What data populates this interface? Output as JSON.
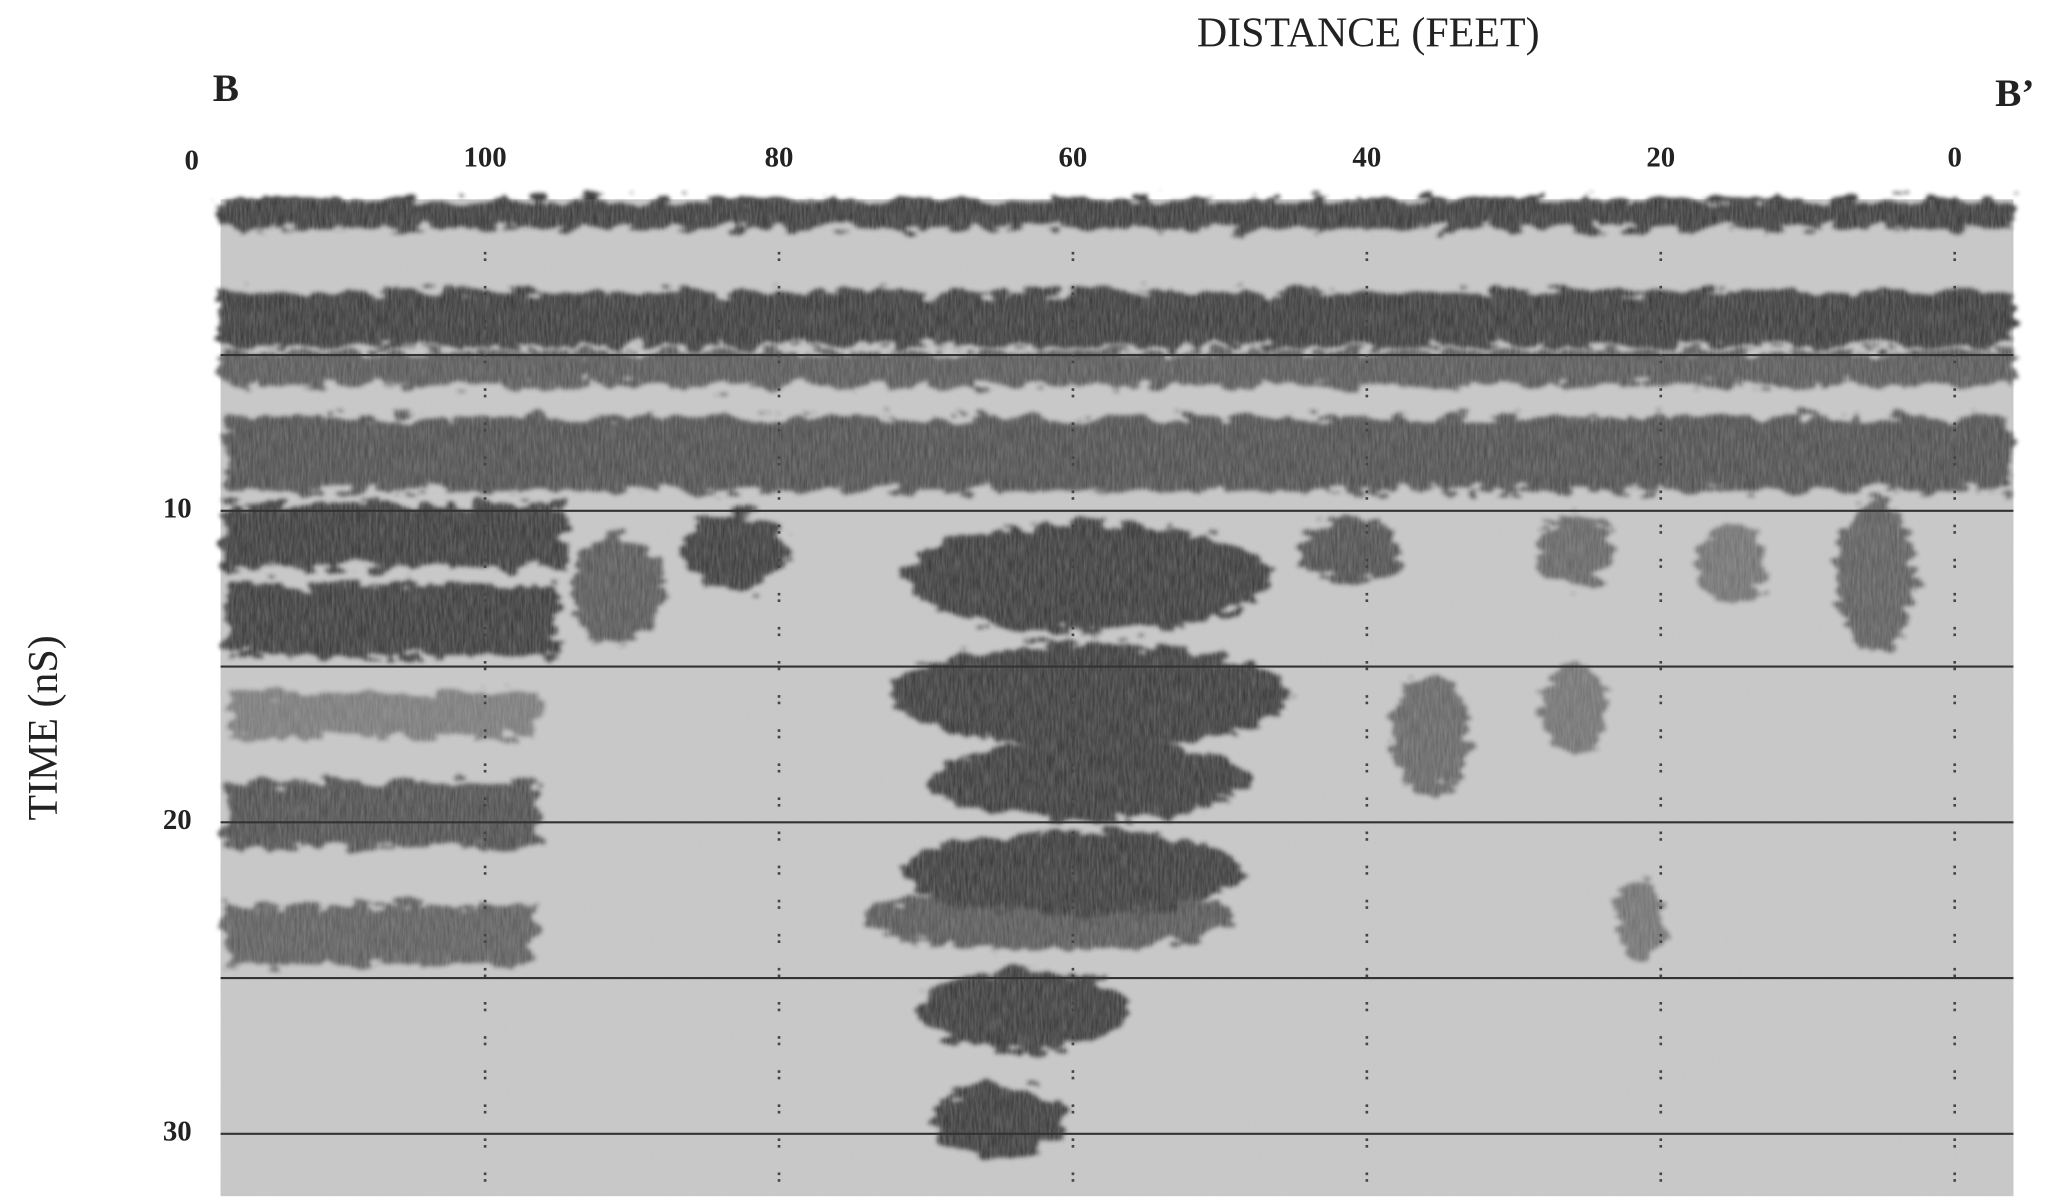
{
  "chart_data": {
    "type": "radargram",
    "xlabel": "DISTANCE (FEET)",
    "left_label": "B",
    "right_label": "B’",
    "ylabel": "TIME (nS)",
    "xlim": [
      118,
      -4
    ],
    "xticks": [
      100,
      80,
      60,
      40,
      20,
      0
    ],
    "ylim": [
      0,
      32
    ],
    "yticks": [
      0,
      10,
      20,
      30
    ],
    "hlines": [
      5,
      10,
      15,
      20,
      25,
      30
    ]
  }
}
